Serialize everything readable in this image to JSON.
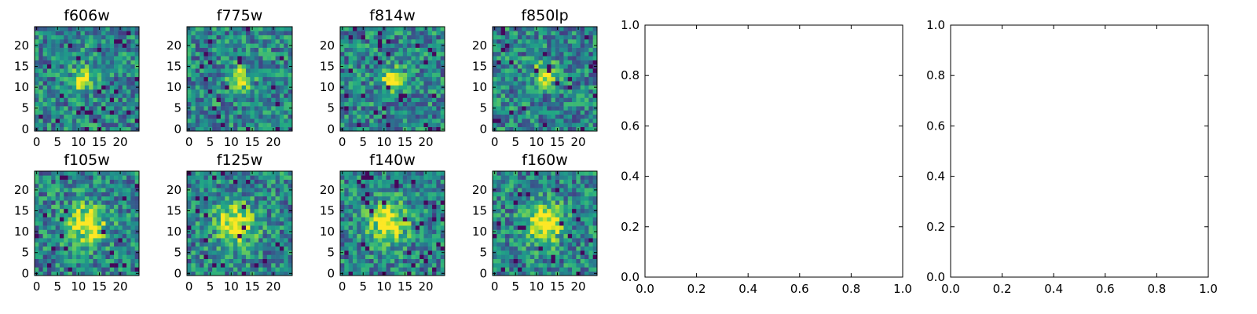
{
  "chart_data": [
    {
      "type": "heatmap",
      "title": "f606w",
      "xlim": [
        -0.5,
        24.5
      ],
      "ylim": [
        -0.5,
        24.5
      ],
      "xticks": [
        0,
        5,
        10,
        15,
        20
      ],
      "yticks": [
        0,
        5,
        10,
        15,
        20
      ],
      "peak": [
        11,
        12
      ],
      "colormap": "viridis"
    },
    {
      "type": "heatmap",
      "title": "f775w",
      "xlim": [
        -0.5,
        24.5
      ],
      "ylim": [
        -0.5,
        24.5
      ],
      "xticks": [
        0,
        5,
        10,
        15,
        20
      ],
      "yticks": [
        0,
        5,
        10,
        15,
        20
      ],
      "peak": [
        12,
        12
      ],
      "colormap": "viridis"
    },
    {
      "type": "heatmap",
      "title": "f814w",
      "xlim": [
        -0.5,
        24.5
      ],
      "ylim": [
        -0.5,
        24.5
      ],
      "xticks": [
        0,
        5,
        10,
        15,
        20
      ],
      "yticks": [
        0,
        5,
        10,
        15,
        20
      ],
      "peak": [
        12,
        12
      ],
      "colormap": "viridis"
    },
    {
      "type": "heatmap",
      "title": "f850lp",
      "xlim": [
        -0.5,
        24.5
      ],
      "ylim": [
        -0.5,
        24.5
      ],
      "xticks": [
        0,
        5,
        10,
        15,
        20
      ],
      "yticks": [
        0,
        5,
        10,
        15,
        20
      ],
      "peak": [
        12,
        13
      ],
      "colormap": "viridis"
    },
    {
      "type": "empty",
      "title": "",
      "xlim": [
        0.0,
        1.0
      ],
      "ylim": [
        0.0,
        1.0
      ],
      "xticks": [
        "0.0",
        "0.2",
        "0.4",
        "0.6",
        "0.8",
        "1.0"
      ],
      "yticks": [
        "0.0",
        "0.2",
        "0.4",
        "0.6",
        "0.8",
        "1.0"
      ]
    },
    {
      "type": "heatmap",
      "title": "f105w",
      "xlim": [
        -0.5,
        24.5
      ],
      "ylim": [
        -0.5,
        24.5
      ],
      "xticks": [
        0,
        5,
        10,
        15,
        20
      ],
      "yticks": [
        0,
        5,
        10,
        15,
        20
      ],
      "peak": [
        12,
        12
      ],
      "colormap": "viridis"
    },
    {
      "type": "heatmap",
      "title": "f125w",
      "xlim": [
        -0.5,
        24.5
      ],
      "ylim": [
        -0.5,
        24.5
      ],
      "xticks": [
        0,
        5,
        10,
        15,
        20
      ],
      "yticks": [
        0,
        5,
        10,
        15,
        20
      ],
      "peak": [
        11,
        12
      ],
      "colormap": "viridis"
    },
    {
      "type": "heatmap",
      "title": "f140w",
      "xlim": [
        -0.5,
        24.5
      ],
      "ylim": [
        -0.5,
        24.5
      ],
      "xticks": [
        0,
        5,
        10,
        15,
        20
      ],
      "yticks": [
        0,
        5,
        10,
        15,
        20
      ],
      "peak": [
        11,
        12
      ],
      "colormap": "viridis"
    },
    {
      "type": "heatmap",
      "title": "f160w",
      "xlim": [
        -0.5,
        24.5
      ],
      "ylim": [
        -0.5,
        24.5
      ],
      "xticks": [
        0,
        5,
        10,
        15,
        20
      ],
      "yticks": [
        0,
        5,
        10,
        15,
        20
      ],
      "peak": [
        12,
        12
      ],
      "colormap": "viridis"
    },
    {
      "type": "empty",
      "title": "",
      "xlim": [
        0.0,
        1.0
      ],
      "ylim": [
        0.0,
        1.0
      ],
      "xticks": [
        "0.0",
        "0.2",
        "0.4",
        "0.6",
        "0.8",
        "1.0"
      ],
      "yticks": [
        "0.0",
        "0.2",
        "0.4",
        "0.6",
        "0.8",
        "1.0"
      ]
    }
  ]
}
